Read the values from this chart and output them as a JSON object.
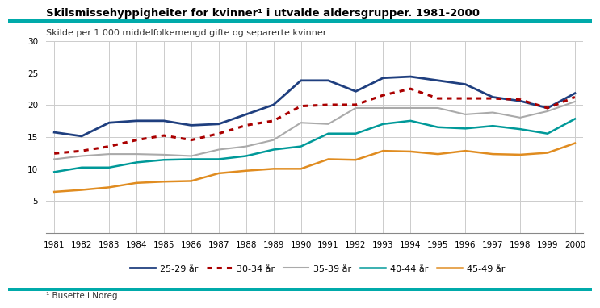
{
  "title": "Skilsmissehyppigheiter for kvinner¹ i utvalde aldersgrupper. 1981-2000",
  "subtitle": "Skilde per 1 000 middelfolkemengd gifte og separerte kvinner",
  "footnote": "¹ Busette i Noreg.",
  "years": [
    1981,
    1982,
    1983,
    1984,
    1985,
    1986,
    1987,
    1988,
    1989,
    1990,
    1991,
    1992,
    1993,
    1994,
    1995,
    1996,
    1997,
    1998,
    1999,
    2000
  ],
  "series": {
    "25-29 år": {
      "values": [
        15.7,
        15.1,
        17.2,
        17.5,
        17.5,
        16.8,
        17.0,
        18.5,
        20.0,
        23.8,
        23.8,
        22.1,
        24.2,
        24.4,
        23.8,
        23.2,
        21.2,
        20.6,
        19.5,
        21.8
      ],
      "color": "#1f3f7f",
      "linestyle": "solid",
      "linewidth": 2.0,
      "dashes": []
    },
    "30-34 år": {
      "values": [
        12.4,
        12.8,
        13.5,
        14.5,
        15.2,
        14.5,
        15.5,
        16.8,
        17.5,
        19.8,
        20.0,
        20.0,
        21.5,
        22.5,
        21.0,
        21.0,
        21.0,
        20.8,
        19.5,
        21.2
      ],
      "color": "#aa0000",
      "linestyle": "dotted",
      "linewidth": 2.2,
      "dashes": [
        2,
        2
      ]
    },
    "35-39 år": {
      "values": [
        11.5,
        12.0,
        12.3,
        12.3,
        12.2,
        12.0,
        13.0,
        13.5,
        14.5,
        17.2,
        17.0,
        19.5,
        19.5,
        19.5,
        19.5,
        18.5,
        18.8,
        18.0,
        19.0,
        20.5
      ],
      "color": "#aaaaaa",
      "linestyle": "solid",
      "linewidth": 1.5,
      "dashes": []
    },
    "40-44 år": {
      "values": [
        9.5,
        10.2,
        10.2,
        11.0,
        11.4,
        11.5,
        11.5,
        12.0,
        13.0,
        13.5,
        15.5,
        15.5,
        17.0,
        17.5,
        16.5,
        16.3,
        16.7,
        16.2,
        15.5,
        17.8
      ],
      "color": "#009999",
      "linestyle": "solid",
      "linewidth": 1.8,
      "dashes": []
    },
    "45-49 år": {
      "values": [
        6.4,
        6.7,
        7.1,
        7.8,
        8.0,
        8.1,
        9.3,
        9.7,
        10.0,
        10.0,
        11.5,
        11.4,
        12.8,
        12.7,
        12.3,
        12.8,
        12.3,
        12.2,
        12.5,
        14.0
      ],
      "color": "#e08c20",
      "linestyle": "solid",
      "linewidth": 1.8,
      "dashes": []
    }
  },
  "ylim": [
    0,
    30
  ],
  "yticks": [
    0,
    5,
    10,
    15,
    20,
    25,
    30
  ],
  "title_color": "#000000",
  "background_color": "#ffffff",
  "grid_color": "#cccccc",
  "teal_bar_color": "#00aaaa"
}
